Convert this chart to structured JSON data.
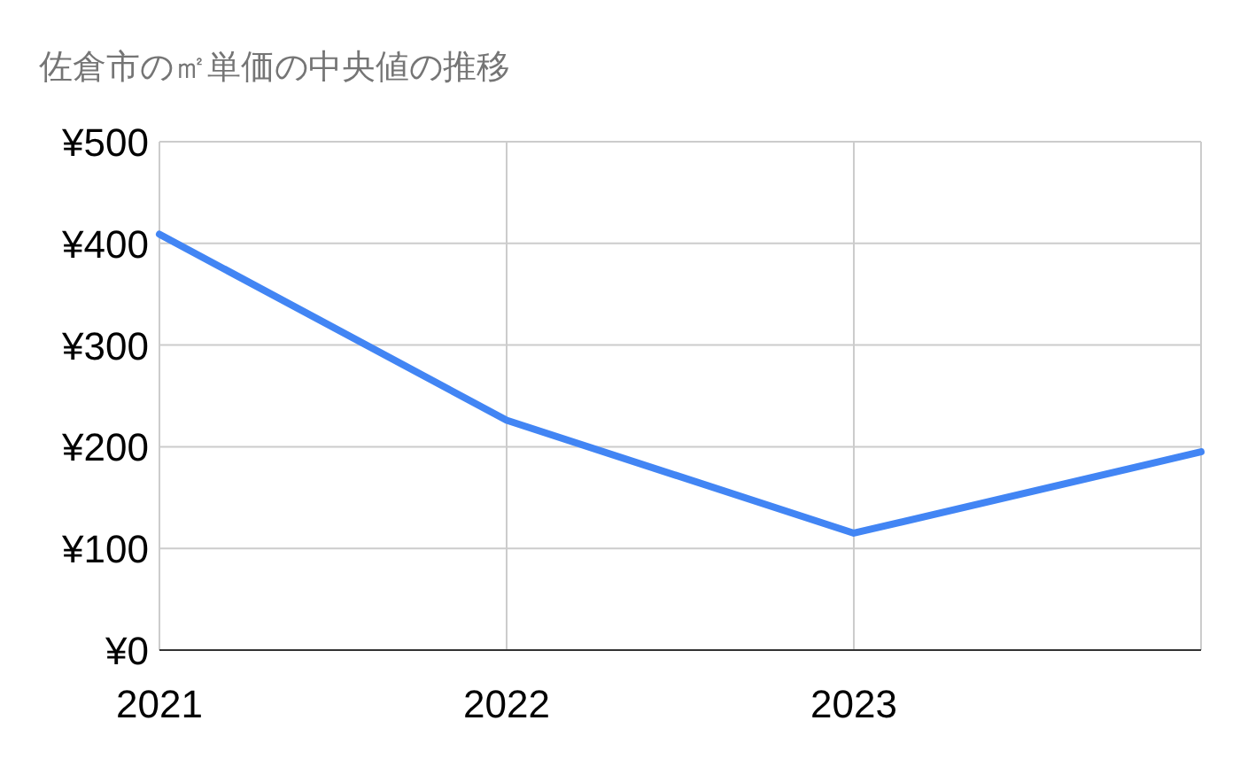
{
  "chart_data": {
    "type": "line",
    "title": "佐倉市の㎡単価の中央値の推移",
    "x": [
      "2021",
      "2022",
      "2023",
      "2024"
    ],
    "series": [
      {
        "color": "#4285f4",
        "values": [
          409,
          226,
          115,
          195
        ]
      }
    ],
    "xlim": [
      "2021",
      "2024"
    ],
    "xticks": [
      {
        "value": "2021",
        "label": "2021"
      },
      {
        "value": "2022",
        "label": "2022"
      },
      {
        "value": "2023",
        "label": "2023"
      },
      {
        "value": "2024",
        "label": null
      }
    ],
    "ylim": [
      0,
      500
    ],
    "yticks": [
      {
        "value": 0,
        "label": "¥0"
      },
      {
        "value": 100,
        "label": "¥100"
      },
      {
        "value": 200,
        "label": "¥200"
      },
      {
        "value": 300,
        "label": "¥300"
      },
      {
        "value": 400,
        "label": "¥400"
      },
      {
        "value": 500,
        "label": "¥500"
      }
    ],
    "grid": true,
    "marker": "none",
    "line_style": "solid"
  }
}
